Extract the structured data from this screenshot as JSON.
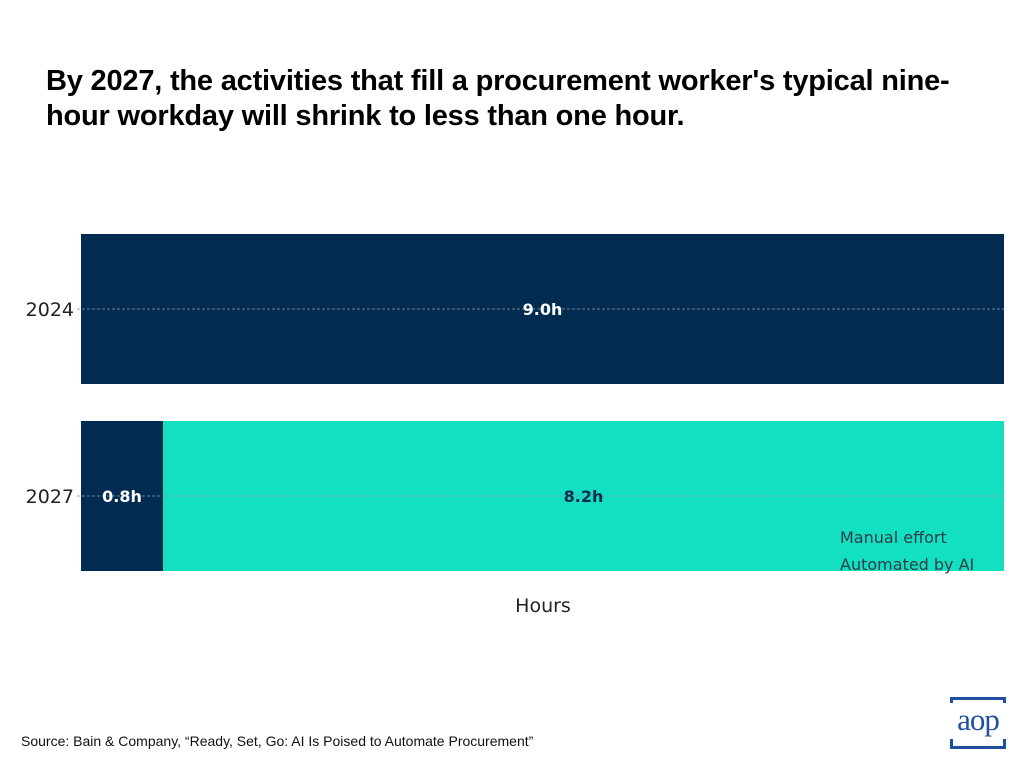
{
  "title": "By 2027, the activities that fill a procurement worker's typical nine-hour workday will shrink to less than one hour.",
  "source": "Source:  Bain & Company, “Ready, Set, Go: AI Is Poised to Automate Procurement”",
  "logo": {
    "text": "aop",
    "color": "#1f4fa0"
  },
  "chart_data": {
    "type": "bar",
    "orientation": "horizontal",
    "stacked": true,
    "title": "By 2027, the activities that fill a procurement worker's typical nine-hour workday will shrink to less than one hour.",
    "xlabel": "Hours",
    "ylabel": "",
    "xlim": [
      0,
      9
    ],
    "categories": [
      "2024",
      "2027"
    ],
    "series": [
      {
        "name": "Manual effort",
        "color": "#022b52",
        "label_color": "#ffffff",
        "values": [
          9.0,
          0.8
        ],
        "labels": [
          "9.0h",
          "0.8h"
        ]
      },
      {
        "name": "Automated by AI",
        "color": "#12e0c0",
        "label_color": "#022b52",
        "values": [
          0.0,
          8.2
        ],
        "labels": [
          "",
          "8.2h"
        ]
      }
    ],
    "grid": "horizontal dashed at category centers",
    "legend": {
      "placement": "bottom-right",
      "entries": [
        "Manual effort",
        "Automated by AI"
      ]
    }
  }
}
